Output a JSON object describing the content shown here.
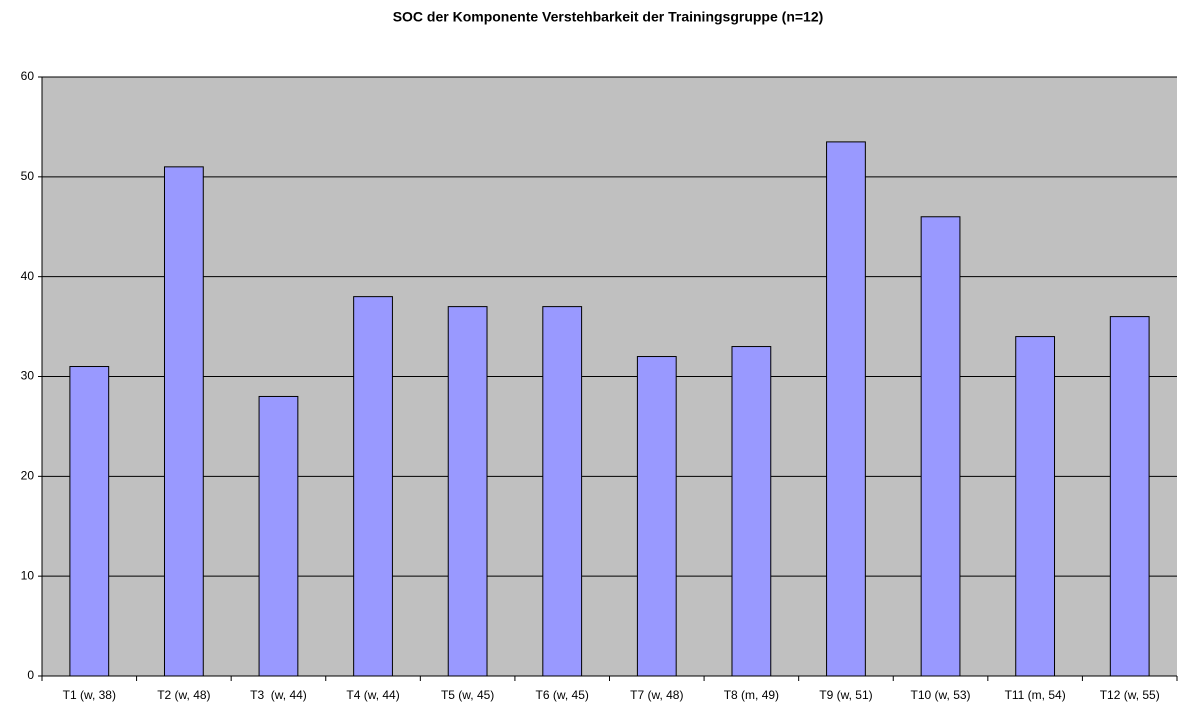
{
  "chart_data": {
    "type": "bar",
    "title": "SOC der Komponente Verstehbarkeit der Trainingsgruppe (n=12)",
    "categories": [
      "T1 (w, 38)",
      "T2 (w, 48)",
      "T3  (w, 44)",
      "T4 (w, 44)",
      "T5 (w, 45)",
      "T6 (w, 45)",
      "T7 (w, 48)",
      "T8 (m, 49)",
      "T9 (w, 51)",
      "T10 (w, 53)",
      "T11 (m, 54)",
      "T12 (w, 55)"
    ],
    "values": [
      31,
      51,
      28,
      38,
      37,
      37,
      32,
      33,
      53.5,
      46,
      34,
      36
    ],
    "color": "#9999ff",
    "ylim": [
      0,
      60
    ],
    "yticks": [
      0,
      10,
      20,
      30,
      40,
      50,
      60
    ],
    "grid": true
  }
}
